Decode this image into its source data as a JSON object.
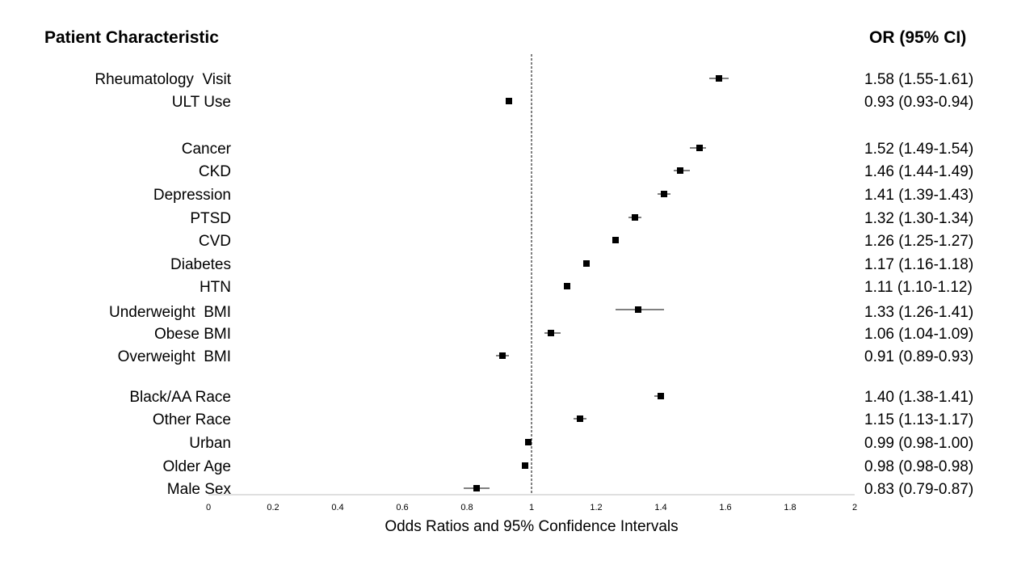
{
  "header": {
    "left": "Patient Characteristic",
    "right": "OR (95% CI)"
  },
  "chart_data": {
    "type": "forest",
    "xlabel": "Odds Ratios and 95% Confidence Intervals",
    "xlim": [
      0,
      2
    ],
    "xticks": [
      "0",
      "0.2",
      "0.4",
      "0.6",
      "0.8",
      "1",
      "1.2",
      "1.4",
      "1.6",
      "1.8",
      "2"
    ],
    "reference_line": 1,
    "rows": [
      {
        "label": "Rheumatology  Visit",
        "or": 1.58,
        "lo": 1.55,
        "hi": 1.61,
        "text": "1.58 (1.55-1.61)"
      },
      {
        "label": "ULT Use",
        "or": 0.93,
        "lo": 0.93,
        "hi": 0.94,
        "text": "0.93 (0.93-0.94)"
      },
      {
        "label": "Cancer",
        "or": 1.52,
        "lo": 1.49,
        "hi": 1.54,
        "text": "1.52 (1.49-1.54)"
      },
      {
        "label": "CKD",
        "or": 1.46,
        "lo": 1.44,
        "hi": 1.49,
        "text": "1.46 (1.44-1.49)"
      },
      {
        "label": "Depression",
        "or": 1.41,
        "lo": 1.39,
        "hi": 1.43,
        "text": "1.41 (1.39-1.43)"
      },
      {
        "label": "PTSD",
        "or": 1.32,
        "lo": 1.3,
        "hi": 1.34,
        "text": "1.32 (1.30-1.34)"
      },
      {
        "label": "CVD",
        "or": 1.26,
        "lo": 1.25,
        "hi": 1.27,
        "text": "1.26 (1.25-1.27)"
      },
      {
        "label": "Diabetes",
        "or": 1.17,
        "lo": 1.16,
        "hi": 1.18,
        "text": "1.17 (1.16-1.18)"
      },
      {
        "label": "HTN",
        "or": 1.11,
        "lo": 1.1,
        "hi": 1.12,
        "text": "1.11 (1.10-1.12)"
      },
      {
        "label": "Underweight  BMI",
        "or": 1.33,
        "lo": 1.26,
        "hi": 1.41,
        "text": "1.33 (1.26-1.41)"
      },
      {
        "label": "Obese BMI",
        "or": 1.06,
        "lo": 1.04,
        "hi": 1.09,
        "text": "1.06 (1.04-1.09)"
      },
      {
        "label": "Overweight  BMI",
        "or": 0.91,
        "lo": 0.89,
        "hi": 0.93,
        "text": "0.91 (0.89-0.93)"
      },
      {
        "label": "Black/AA Race",
        "or": 1.4,
        "lo": 1.38,
        "hi": 1.41,
        "text": "1.40 (1.38-1.41)"
      },
      {
        "label": "Other Race",
        "or": 1.15,
        "lo": 1.13,
        "hi": 1.17,
        "text": "1.15 (1.13-1.17)"
      },
      {
        "label": "Urban",
        "or": 0.99,
        "lo": 0.98,
        "hi": 1.0,
        "text": "0.99 (0.98-1.00)"
      },
      {
        "label": "Older Age",
        "or": 0.98,
        "lo": 0.98,
        "hi": 0.98,
        "text": "0.98 (0.98-0.98)"
      },
      {
        "label": "Male Sex",
        "or": 0.83,
        "lo": 0.79,
        "hi": 0.87,
        "text": "0.83 (0.79-0.87)"
      }
    ]
  }
}
